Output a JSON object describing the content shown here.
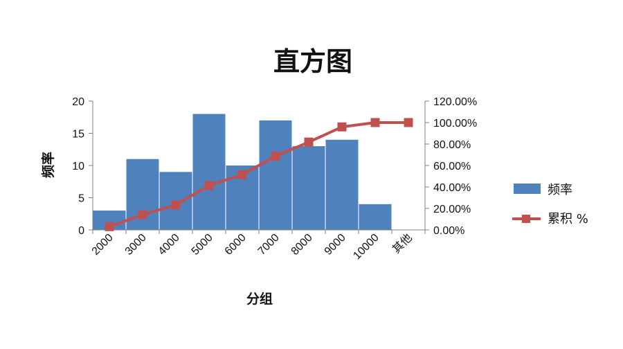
{
  "chart_data": {
    "type": "bar",
    "title": "直方图",
    "xlabel": "分组",
    "ylabel": "频率",
    "categories": [
      "2000",
      "3000",
      "4000",
      "5000",
      "6000",
      "7000",
      "8000",
      "9000",
      "10000",
      "其他"
    ],
    "series": [
      {
        "name": "频率",
        "type": "bar",
        "axis": "left",
        "color": "#4F81BD",
        "values": [
          3,
          11,
          9,
          18,
          10,
          17,
          13,
          14,
          4,
          0
        ]
      },
      {
        "name": "累积 %",
        "type": "line",
        "axis": "right",
        "color": "#C0504D",
        "values": [
          3.03,
          14.14,
          23.23,
          41.41,
          51.52,
          68.69,
          81.82,
          95.96,
          100.0,
          100.0
        ]
      }
    ],
    "ylim": [
      0,
      20
    ],
    "y_ticks": [
      "0",
      "5",
      "10",
      "15",
      "20"
    ],
    "y_tick_values": [
      0,
      5,
      10,
      15,
      20
    ],
    "y2lim": [
      0,
      120
    ],
    "y2_ticks": [
      "0.00%",
      "20.00%",
      "40.00%",
      "60.00%",
      "80.00%",
      "100.00%",
      "120.00%"
    ],
    "y2_tick_values": [
      0,
      20,
      40,
      60,
      80,
      100,
      120
    ],
    "grid": false,
    "legend": "right",
    "other_label_color": "#808080"
  }
}
